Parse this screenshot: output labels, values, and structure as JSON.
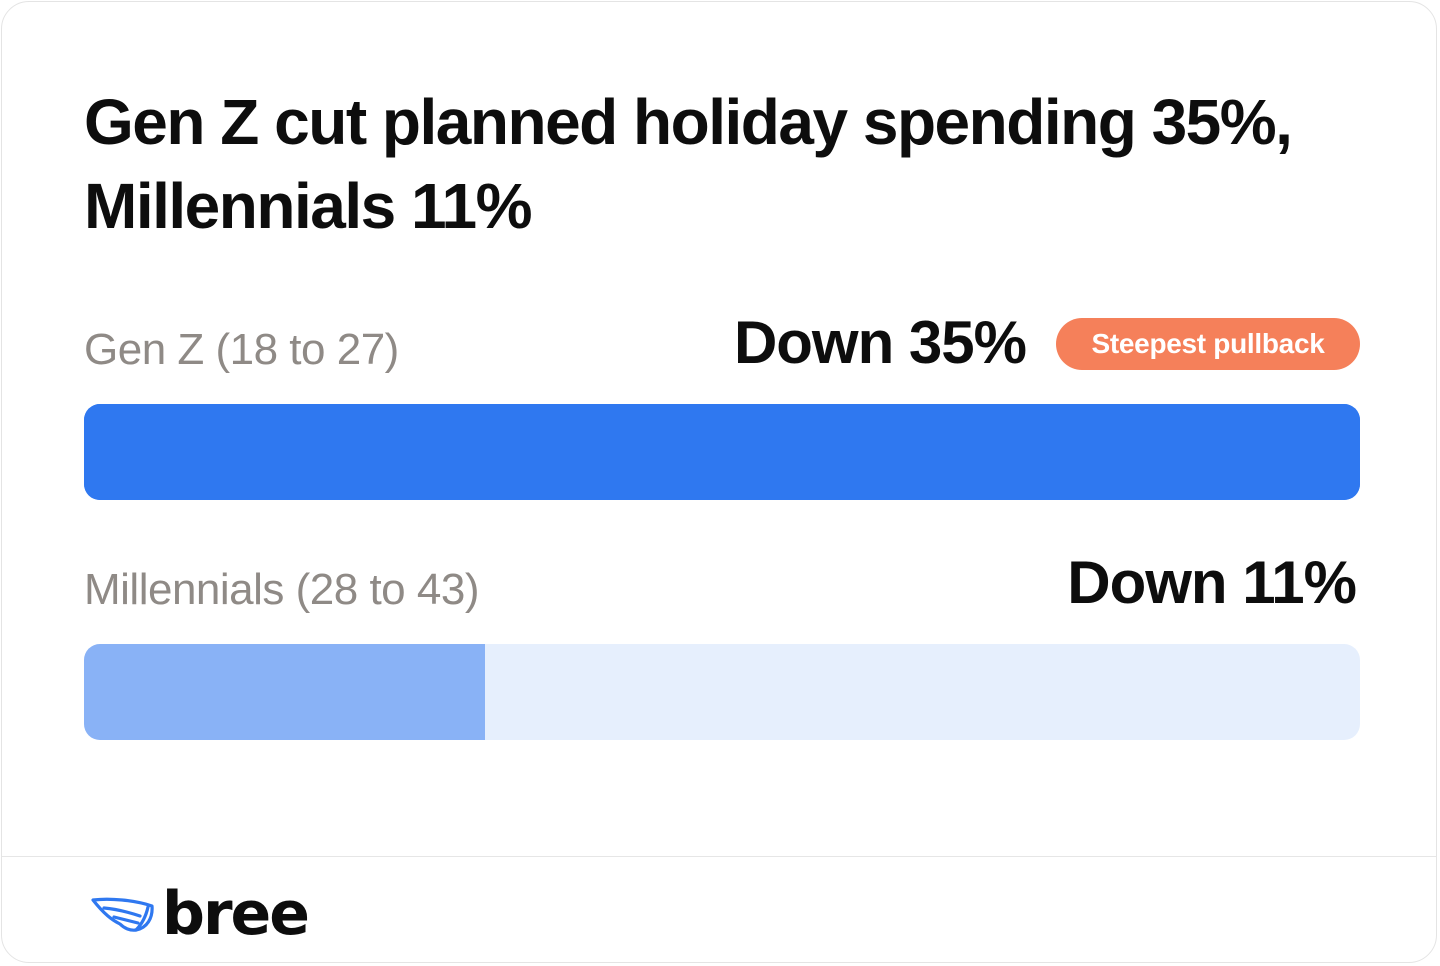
{
  "chart_data": {
    "type": "bar",
    "title": "Gen Z cut planned holiday spending 35%, Millennials 11%",
    "categories": [
      "Gen Z (18 to 27)",
      "Millennials (28 to 43)"
    ],
    "values": [
      35,
      11
    ],
    "value_labels": [
      "Down 35%",
      "Down 11%"
    ],
    "xlim": [
      0,
      35
    ],
    "orientation": "horizontal",
    "annotations": [
      {
        "category": "Gen Z (18 to 27)",
        "text": "Steepest pullback",
        "color": "#f5805a"
      }
    ],
    "colors": {
      "primary_bar": "#2f78f0",
      "secondary_bar": "#89b2f6",
      "track": "#e6effd",
      "badge": "#f5805a"
    }
  },
  "brand": {
    "logo_text": "bree",
    "logo_icon": "wing-icon",
    "logo_color": "#2f78f0"
  }
}
